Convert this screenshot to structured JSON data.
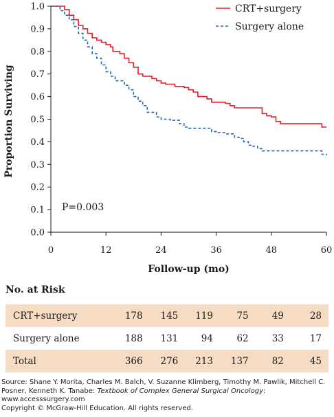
{
  "chart_data": {
    "type": "line",
    "title": "",
    "xlabel": "Follow-up (mo)",
    "ylabel": "Proportion Surviving",
    "xlim": [
      0,
      60
    ],
    "ylim": [
      0,
      1.0
    ],
    "x_ticks": [
      "0",
      "12",
      "24",
      "36",
      "48",
      "60"
    ],
    "y_ticks": [
      "0.0",
      "0.1",
      "0.2",
      "0.3",
      "0.4",
      "0.5",
      "0.6",
      "0.7",
      "0.8",
      "0.9",
      "1.0"
    ],
    "grid": false,
    "legend": "top-right",
    "annotation": "P=0.003",
    "series": [
      {
        "name": "CRT+surgery",
        "color": "#e0202a",
        "style": "solid",
        "points": [
          [
            0,
            1.0
          ],
          [
            2.5,
            1.0
          ],
          [
            3,
            0.985
          ],
          [
            4,
            0.96
          ],
          [
            5,
            0.94
          ],
          [
            6,
            0.915
          ],
          [
            7,
            0.9
          ],
          [
            8,
            0.88
          ],
          [
            9,
            0.86
          ],
          [
            10,
            0.85
          ],
          [
            11,
            0.84
          ],
          [
            12,
            0.83
          ],
          [
            13,
            0.82
          ],
          [
            13.5,
            0.8
          ],
          [
            15,
            0.79
          ],
          [
            16,
            0.77
          ],
          [
            17,
            0.75
          ],
          [
            18,
            0.73
          ],
          [
            19,
            0.7
          ],
          [
            20,
            0.69
          ],
          [
            22,
            0.68
          ],
          [
            23,
            0.67
          ],
          [
            24,
            0.66
          ],
          [
            25,
            0.655
          ],
          [
            27,
            0.645
          ],
          [
            29,
            0.64
          ],
          [
            30,
            0.63
          ],
          [
            31,
            0.62
          ],
          [
            32,
            0.6
          ],
          [
            34,
            0.59
          ],
          [
            35,
            0.575
          ],
          [
            38,
            0.57
          ],
          [
            39,
            0.56
          ],
          [
            40,
            0.55
          ],
          [
            44,
            0.55
          ],
          [
            46,
            0.525
          ],
          [
            47,
            0.515
          ],
          [
            48,
            0.51
          ],
          [
            49,
            0.49
          ],
          [
            50,
            0.48
          ],
          [
            58,
            0.48
          ],
          [
            59,
            0.465
          ],
          [
            60,
            0.465
          ]
        ]
      },
      {
        "name": "Surgery alone",
        "color": "#2266aa",
        "style": "dashed",
        "points": [
          [
            0,
            1.0
          ],
          [
            2,
            0.98
          ],
          [
            3,
            0.96
          ],
          [
            4,
            0.94
          ],
          [
            5,
            0.91
          ],
          [
            6,
            0.88
          ],
          [
            7,
            0.85
          ],
          [
            8,
            0.82
          ],
          [
            9,
            0.79
          ],
          [
            10,
            0.77
          ],
          [
            11,
            0.74
          ],
          [
            12,
            0.71
          ],
          [
            13,
            0.69
          ],
          [
            14,
            0.67
          ],
          [
            16,
            0.65
          ],
          [
            17,
            0.63
          ],
          [
            18,
            0.6
          ],
          [
            19,
            0.58
          ],
          [
            20,
            0.56
          ],
          [
            21,
            0.53
          ],
          [
            23,
            0.51
          ],
          [
            24,
            0.5
          ],
          [
            26,
            0.495
          ],
          [
            28,
            0.48
          ],
          [
            29,
            0.465
          ],
          [
            30,
            0.46
          ],
          [
            34,
            0.46
          ],
          [
            35,
            0.445
          ],
          [
            36,
            0.44
          ],
          [
            38,
            0.435
          ],
          [
            40,
            0.42
          ],
          [
            41,
            0.415
          ],
          [
            42,
            0.4
          ],
          [
            43,
            0.385
          ],
          [
            44,
            0.38
          ],
          [
            45,
            0.37
          ],
          [
            46,
            0.36
          ],
          [
            58,
            0.36
          ],
          [
            59,
            0.345
          ],
          [
            60,
            0.34
          ]
        ]
      }
    ]
  },
  "risk_table": {
    "title": "No. at Risk",
    "rows": [
      {
        "label": "CRT+surgery",
        "values": [
          "178",
          "145",
          "119",
          "75",
          "49",
          "28"
        ]
      },
      {
        "label": "Surgery alone",
        "values": [
          "188",
          "131",
          "94",
          "62",
          "33",
          "17"
        ]
      },
      {
        "label": "Total",
        "values": [
          "366",
          "276",
          "213",
          "137",
          "82",
          "45"
        ]
      }
    ]
  },
  "source": {
    "prefix": "Source: Shane Y. Morita, Charles M. Balch, V. Suzanne Klimberg, Timothy M. Pawlik, Mitchell C. Posner, Kenneth K. Tanabe: ",
    "book": "Textbook of Complex General Surgical Oncology",
    "suffix": ":",
    "url": "www.accesssurgery.com",
    "copyright": "Copyright © McGraw-Hill Education. All rights reserved."
  }
}
